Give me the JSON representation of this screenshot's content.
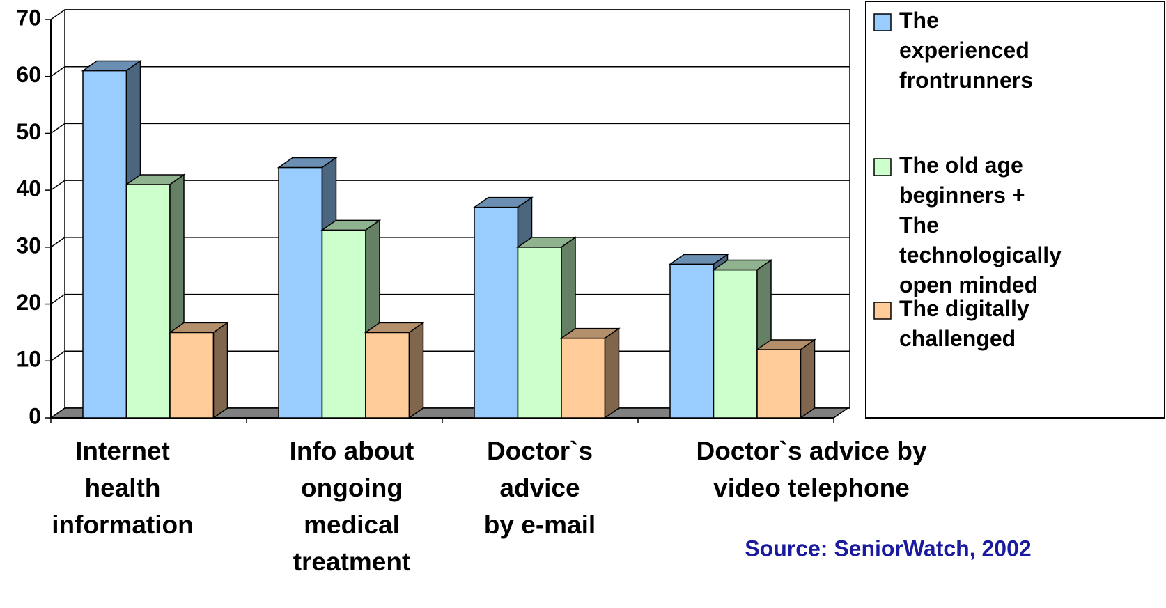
{
  "chart_data": {
    "type": "bar3d",
    "categories": [
      "Internet\nhealth\ninformation",
      "Info about\nongoing\nmedical\ntreatment",
      "Doctor`s\nadvice\nby e-mail",
      "Doctor`s advice by\nvideo telephone"
    ],
    "series": [
      {
        "name": "The\nexperienced\nfrontrunners",
        "color": "#99ccff",
        "values": [
          61,
          44,
          37,
          27
        ]
      },
      {
        "name": "The old age\nbeginners +\nThe\ntechnologically\nopen minded",
        "color": "#ccffcc",
        "values": [
          41,
          33,
          30,
          26
        ]
      },
      {
        "name": "The digitally\nchallenged",
        "color": "#ffcc99",
        "values": [
          15,
          15,
          14,
          12
        ]
      }
    ],
    "ylim": [
      0,
      70
    ],
    "yticks": [
      0,
      10,
      20,
      30,
      40,
      50,
      60,
      70
    ],
    "grid": true,
    "legend": "right",
    "source": "Source: SeniorWatch, 2002"
  }
}
